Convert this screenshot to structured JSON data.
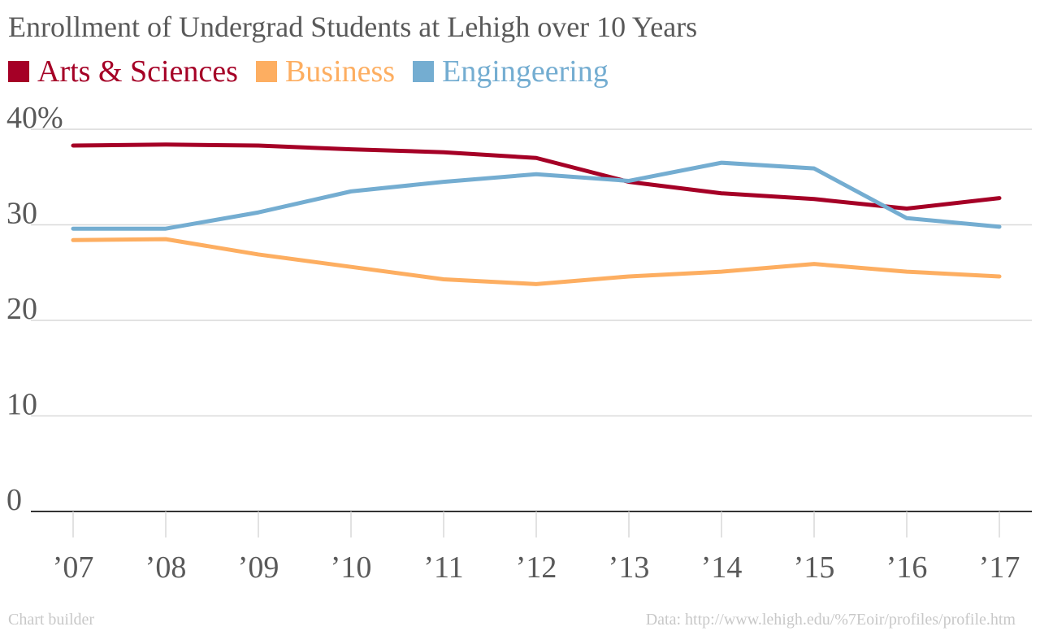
{
  "chart_data": {
    "type": "line",
    "title": "Enrollment of Undergrad Students at Lehigh over 10 Years",
    "xlabel": "",
    "ylabel": "",
    "categories": [
      "’07",
      "’08",
      "’09",
      "’10",
      "’11",
      "’12",
      "’13",
      "’14",
      "’15",
      "’16",
      "’17"
    ],
    "ylim": [
      0,
      40
    ],
    "y_ticks": [
      {
        "value": 0,
        "label": "0"
      },
      {
        "value": 10,
        "label": "10"
      },
      {
        "value": 20,
        "label": "20"
      },
      {
        "value": 30,
        "label": "30"
      },
      {
        "value": 40,
        "label": "40%"
      }
    ],
    "grid": true,
    "legend_position": "top-left",
    "series": [
      {
        "name": "Arts & Sciences",
        "color": "#a50026",
        "values": [
          38.3,
          38.4,
          38.3,
          37.9,
          37.6,
          37.0,
          34.5,
          33.3,
          32.7,
          31.7,
          32.8
        ]
      },
      {
        "name": "Business",
        "color": "#fdae61",
        "values": [
          28.4,
          28.5,
          26.9,
          25.6,
          24.3,
          23.8,
          24.6,
          25.1,
          25.9,
          25.1,
          24.6
        ]
      },
      {
        "name": "Engingeering",
        "color": "#74add1",
        "values": [
          29.6,
          29.6,
          31.3,
          33.5,
          34.5,
          35.3,
          34.6,
          36.5,
          35.9,
          30.7,
          29.8
        ]
      }
    ]
  },
  "footer": {
    "left": "Chart builder",
    "right": "Data: http://www.lehigh.edu/%7Eoir/profiles/profile.htm"
  }
}
